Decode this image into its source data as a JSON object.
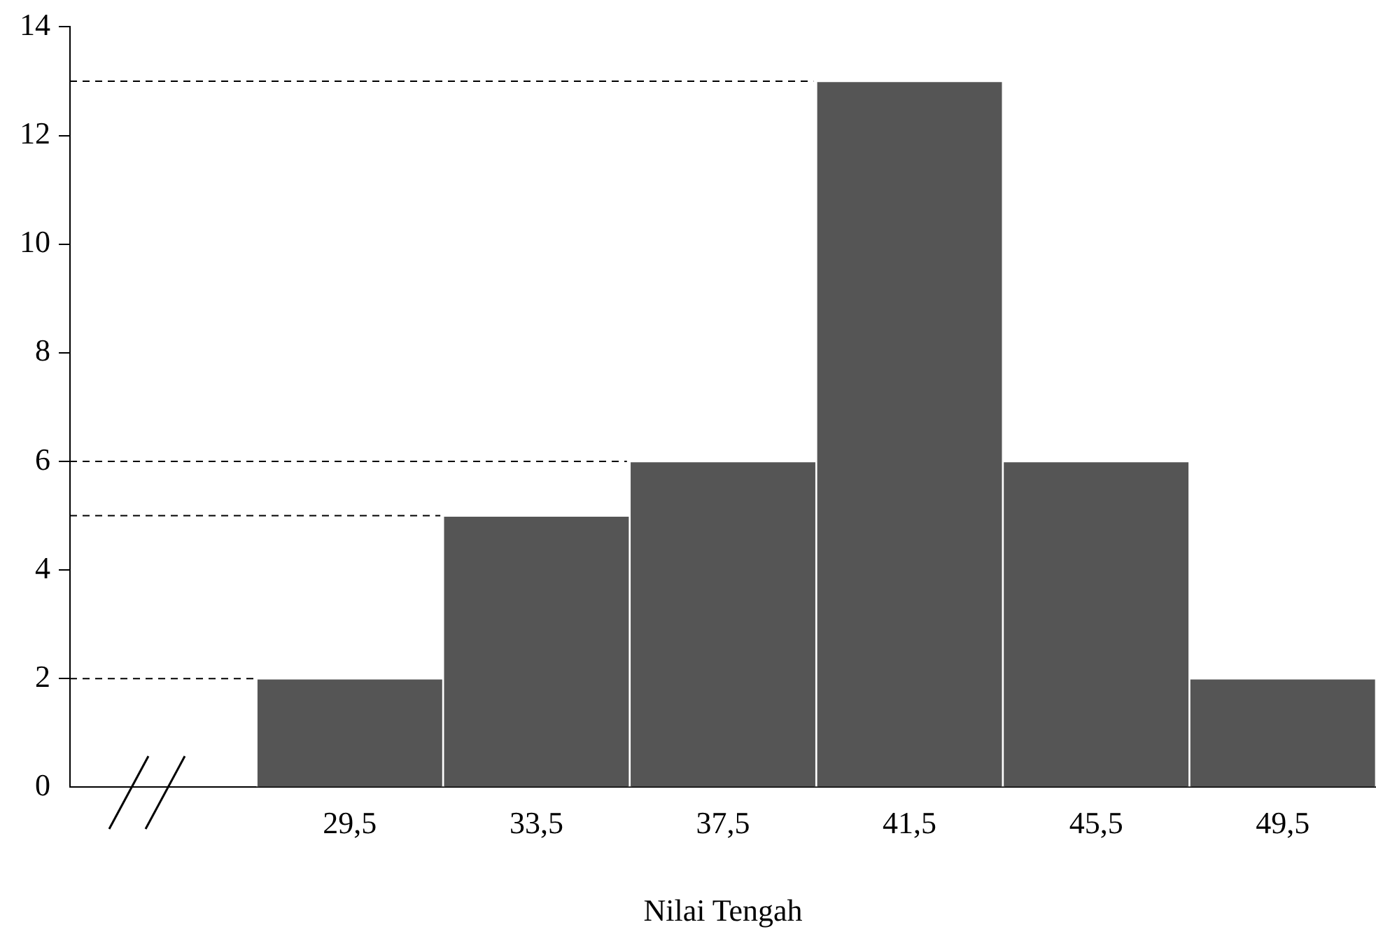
{
  "chart_data": {
    "type": "histogram",
    "xlabel": "Nilai Tengah",
    "bins": [
      27.5,
      31.5,
      35.5,
      39.5,
      43.5,
      47.5,
      51.5
    ],
    "values": [
      2,
      5,
      6,
      13,
      6,
      2
    ],
    "color": "#555555",
    "xlim": [
      23.5,
      51.5
    ],
    "xticks": [
      {
        "value": 29.5,
        "label": "29,5"
      },
      {
        "value": 33.5,
        "label": "33,5"
      },
      {
        "value": 37.5,
        "label": "37,5"
      },
      {
        "value": 41.5,
        "label": "41,5"
      },
      {
        "value": 45.5,
        "label": "45,5"
      },
      {
        "value": 49.5,
        "label": "49,5"
      }
    ],
    "ylim": [
      0,
      14
    ],
    "yticks": [
      0,
      2,
      4,
      6,
      8,
      10,
      12,
      14
    ],
    "ref_lines": [
      {
        "axis": "y",
        "value": 2,
        "line_style": "dashed"
      },
      {
        "axis": "y",
        "value": 5,
        "line_style": "dashed"
      },
      {
        "axis": "y",
        "value": 6,
        "line_style": "dashed"
      },
      {
        "axis": "y",
        "value": 13,
        "line_style": "dashed"
      }
    ],
    "grid": false,
    "legend": false
  }
}
